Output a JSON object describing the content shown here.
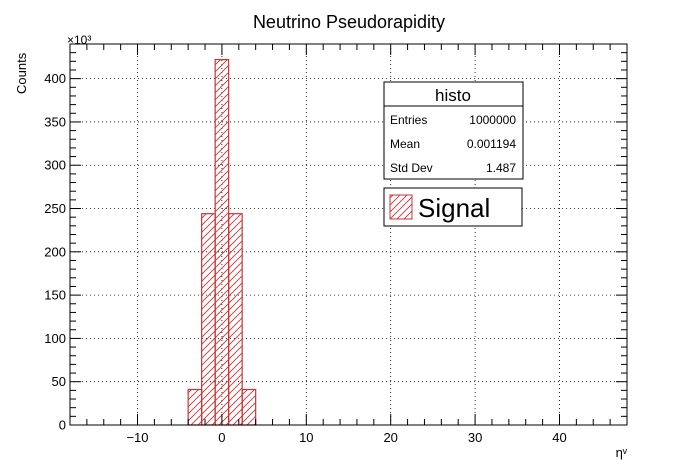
{
  "chart_data": {
    "type": "bar",
    "title": "Neutrino Pseudorapidity",
    "xlabel": "ηᵛ",
    "ylabel": "Counts",
    "y_exponent_label": "×10³",
    "xlim": [
      -18,
      48
    ],
    "ylim": [
      0,
      440
    ],
    "x_ticks": [
      -10,
      0,
      10,
      20,
      30,
      40
    ],
    "y_ticks": [
      0,
      50,
      100,
      150,
      200,
      250,
      300,
      350,
      400
    ],
    "grid": true,
    "bins": [
      {
        "low": -4,
        "high": -2.4,
        "value": 41
      },
      {
        "low": -2.4,
        "high": -0.8,
        "value": 244
      },
      {
        "low": -0.8,
        "high": 0.8,
        "value": 422
      },
      {
        "low": 0.8,
        "high": 2.4,
        "value": 244
      },
      {
        "low": 2.4,
        "high": 4,
        "value": 41
      }
    ],
    "series": [
      {
        "name": "Signal",
        "color": "#cc3333",
        "fill": "hatched"
      }
    ],
    "stats": {
      "title": "histo",
      "rows": [
        {
          "label": "Entries",
          "value": "1000000"
        },
        {
          "label": "Mean",
          "value": "0.001194"
        },
        {
          "label": "Std Dev",
          "value": "1.487"
        }
      ]
    },
    "legend": {
      "label": "Signal",
      "placement": "top-right"
    }
  }
}
